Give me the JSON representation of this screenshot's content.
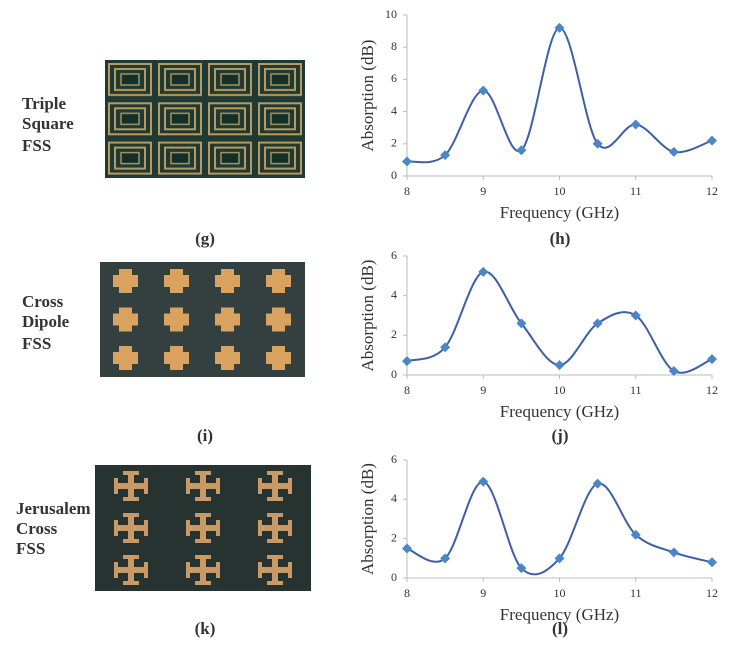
{
  "panels": [
    {
      "photo_label": [
        "Triple",
        "Square",
        "FSS"
      ],
      "photo_tag": "(g)",
      "chart_tag": "(h)"
    },
    {
      "photo_label": [
        "Cross",
        "Dipole",
        "FSS"
      ],
      "photo_tag": "(i)",
      "chart_tag": "(j)"
    },
    {
      "photo_label": [
        "Jerusalem",
        "Cross",
        "FSS"
      ],
      "photo_tag": "(k)",
      "chart_tag": "(l)"
    }
  ],
  "chart_data": [
    {
      "type": "line",
      "x": [
        8,
        8.5,
        9,
        9.5,
        10,
        10.5,
        11,
        11.5,
        12
      ],
      "values": [
        0.9,
        1.3,
        5.3,
        1.6,
        9.2,
        2.0,
        3.2,
        1.5,
        2.2
      ],
      "color": "#3d5fa8",
      "marker_color": "#4a86c8",
      "xlim": [
        8,
        12
      ],
      "xticks": [
        8,
        9,
        10,
        11,
        12
      ],
      "ylim": [
        0,
        10
      ],
      "yticks": [
        0,
        2,
        4,
        6,
        8,
        10
      ],
      "xlabel": "Frequency (GHz)",
      "ylabel": "Absorption (dB)"
    },
    {
      "type": "line",
      "x": [
        8,
        8.5,
        9,
        9.5,
        10,
        10.5,
        11,
        11.5,
        12
      ],
      "values": [
        0.7,
        1.4,
        5.2,
        2.6,
        0.5,
        2.6,
        3.0,
        0.2,
        0.8
      ],
      "color": "#3d5fa8",
      "marker_color": "#4a86c8",
      "xlim": [
        8,
        12
      ],
      "xticks": [
        8,
        9,
        10,
        11,
        12
      ],
      "ylim": [
        0,
        6
      ],
      "yticks": [
        0,
        2,
        4,
        6
      ],
      "xlabel": "Frequency (GHz)",
      "ylabel": "Absorption (dB)"
    },
    {
      "type": "line",
      "x": [
        8,
        8.5,
        9,
        9.5,
        10,
        10.5,
        11,
        11.5,
        12
      ],
      "values": [
        1.5,
        1.0,
        4.9,
        0.5,
        1.0,
        4.8,
        2.2,
        1.3,
        0.8
      ],
      "color": "#3d5fa8",
      "marker_color": "#4a86c8",
      "xlim": [
        8,
        12
      ],
      "xticks": [
        8,
        9,
        10,
        11,
        12
      ],
      "ylim": [
        0,
        6
      ],
      "yticks": [
        0,
        2,
        4,
        6
      ],
      "xlabel": "Frequency (GHz)",
      "ylabel": "Absorption (dB)"
    }
  ]
}
